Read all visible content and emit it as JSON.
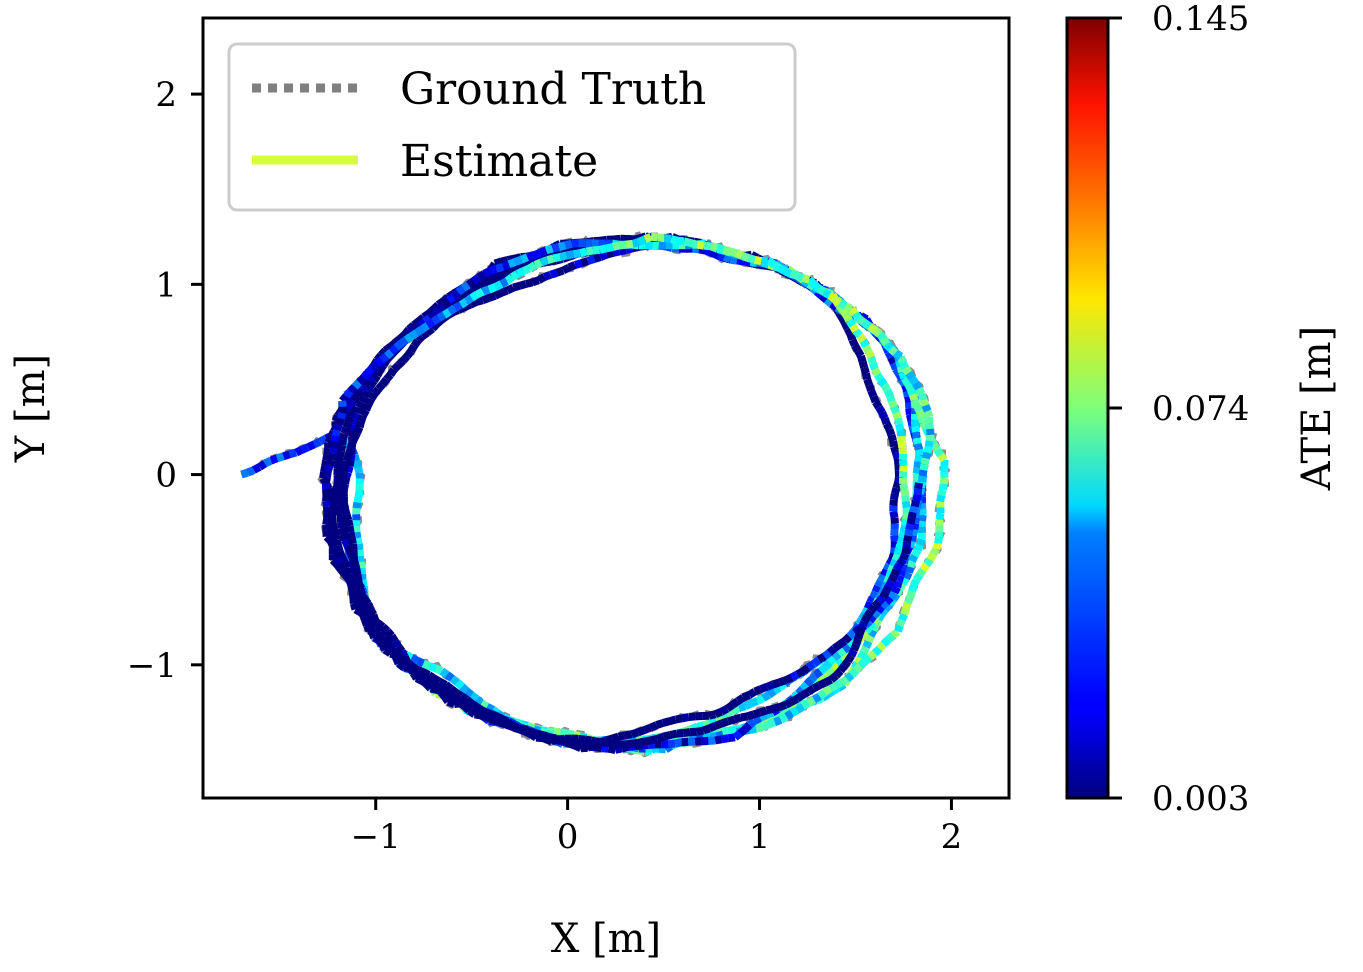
{
  "chart_data": {
    "type": "line",
    "xlabel": "X [m]",
    "ylabel": "Y [m]",
    "xlim": [
      -1.9,
      2.3
    ],
    "ylim": [
      -1.7,
      2.4
    ],
    "xticks": [
      -1,
      0,
      1,
      2
    ],
    "yticks": [
      -1,
      0,
      1,
      2
    ],
    "xtick_labels": [
      "−1",
      "0",
      "1",
      "2"
    ],
    "ytick_labels": [
      "−1",
      "0",
      "1",
      "2"
    ],
    "grid": false,
    "legend": {
      "placement": "top-left",
      "entries": [
        {
          "label": "Ground Truth",
          "style": "dotted",
          "color": "#7f7f7f"
        },
        {
          "label": "Estimate",
          "style": "solid",
          "color": "#d4ff3a"
        }
      ]
    },
    "colorbar": {
      "label": "ATE [m]",
      "colormap": "jet",
      "min": 0.003,
      "max": 0.145,
      "ticks": [
        0.003,
        0.074,
        0.145
      ],
      "tick_labels": [
        "0.003",
        "0.074",
        "0.145"
      ]
    },
    "series": [
      {
        "name": "Ground Truth",
        "color": "#7f7f7f"
      },
      {
        "name": "Estimate",
        "colormap": "jet"
      }
    ]
  }
}
